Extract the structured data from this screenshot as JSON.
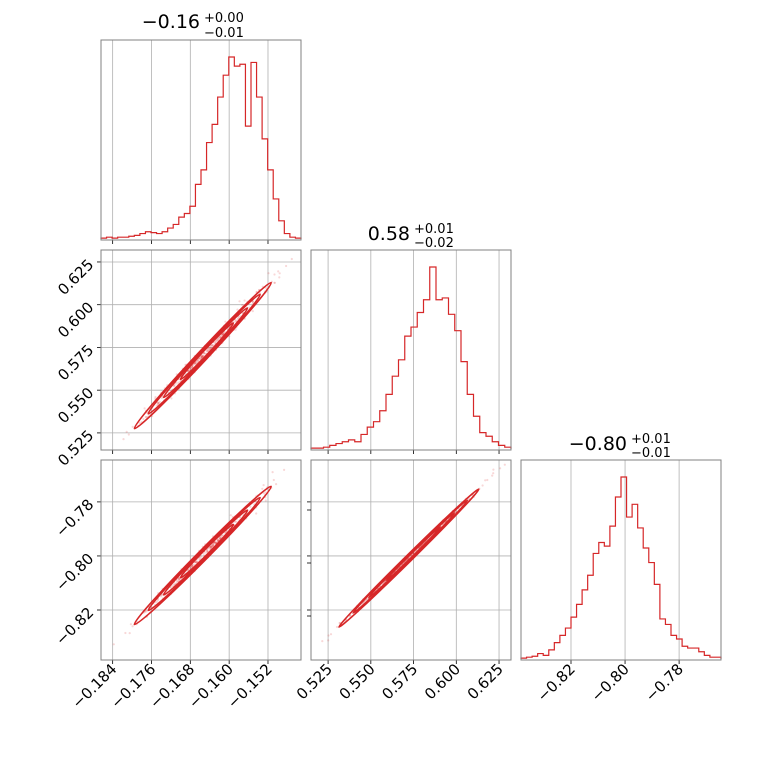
{
  "chart_data": {
    "type": "corner",
    "color": "#d62728",
    "grid": true,
    "parameters": [
      {
        "title": {
          "main": "−0.16",
          "plus": "+0.00",
          "minus": "−0.01"
        },
        "range": [
          -0.1864,
          -0.1452
        ],
        "ticks": [
          -0.184,
          -0.176,
          -0.168,
          -0.16,
          -0.152
        ],
        "tick_labels": [
          "−0.184",
          "−0.176",
          "−0.168",
          "−0.160",
          "−0.152"
        ],
        "hist": [
          0.005,
          0.01,
          0.005,
          0.01,
          0.01,
          0.015,
          0.02,
          0.03,
          0.04,
          0.035,
          0.03,
          0.04,
          0.06,
          0.08,
          0.12,
          0.14,
          0.18,
          0.3,
          0.38,
          0.53,
          0.63,
          0.78,
          0.9,
          1.0,
          0.95,
          0.96,
          0.62,
          0.97,
          0.78,
          0.55,
          0.38,
          0.22,
          0.1,
          0.03,
          0.01,
          0.005
        ]
      },
      {
        "title": {
          "main": "0.58",
          "plus": "+0.01",
          "minus": "−0.02"
        },
        "range": [
          0.515,
          0.632
        ],
        "ticks": [
          0.525,
          0.55,
          0.575,
          0.6,
          0.625
        ],
        "tick_labels": [
          "0.525",
          "0.550",
          "0.575",
          "0.600",
          "0.625"
        ],
        "hist": [
          0.005,
          0.005,
          0.01,
          0.02,
          0.03,
          0.04,
          0.05,
          0.04,
          0.08,
          0.12,
          0.15,
          0.21,
          0.3,
          0.4,
          0.49,
          0.62,
          0.67,
          0.75,
          0.82,
          1.0,
          0.82,
          0.83,
          0.74,
          0.65,
          0.48,
          0.3,
          0.18,
          0.09,
          0.07,
          0.04,
          0.02,
          0.01
        ]
      },
      {
        "title": {
          "main": "−0.80",
          "plus": "+0.01",
          "minus": "−0.01"
        },
        "range": [
          -0.8385,
          -0.7645
        ],
        "ticks": [
          -0.82,
          -0.8,
          -0.78
        ],
        "tick_labels": [
          "−0.82",
          "−0.80",
          "−0.78"
        ],
        "hist": [
          0.005,
          0.01,
          0.015,
          0.03,
          0.02,
          0.05,
          0.09,
          0.13,
          0.17,
          0.23,
          0.3,
          0.38,
          0.46,
          0.58,
          0.64,
          0.62,
          0.73,
          0.89,
          1.0,
          0.78,
          0.85,
          0.72,
          0.61,
          0.53,
          0.41,
          0.22,
          0.19,
          0.13,
          0.11,
          0.07,
          0.06,
          0.06,
          0.04,
          0.02,
          0.01,
          0.01
        ]
      }
    ],
    "pairs": [
      {
        "x_param": 0,
        "y_param": 1,
        "ridge": [
          [
            -0.181,
            0.523
          ],
          [
            -0.175,
            0.538
          ],
          [
            -0.169,
            0.552
          ],
          [
            -0.164,
            0.566
          ],
          [
            -0.16,
            0.58
          ],
          [
            -0.156,
            0.594
          ],
          [
            -0.152,
            0.607
          ],
          [
            -0.149,
            0.62
          ]
        ]
      },
      {
        "x_param": 0,
        "y_param": 2,
        "ridge": [
          [
            -0.181,
            -0.828
          ],
          [
            -0.175,
            -0.82
          ],
          [
            -0.169,
            -0.811
          ],
          [
            -0.164,
            -0.802
          ],
          [
            -0.16,
            -0.795
          ],
          [
            -0.156,
            -0.787
          ],
          [
            -0.152,
            -0.778
          ],
          [
            -0.149,
            -0.77
          ]
        ]
      },
      {
        "x_param": 1,
        "y_param": 2,
        "ridge": [
          [
            0.527,
            -0.829
          ],
          [
            0.545,
            -0.82
          ],
          [
            0.56,
            -0.811
          ],
          [
            0.575,
            -0.801
          ],
          [
            0.59,
            -0.791
          ],
          [
            0.605,
            -0.781
          ],
          [
            0.62,
            -0.771
          ]
        ]
      }
    ]
  }
}
